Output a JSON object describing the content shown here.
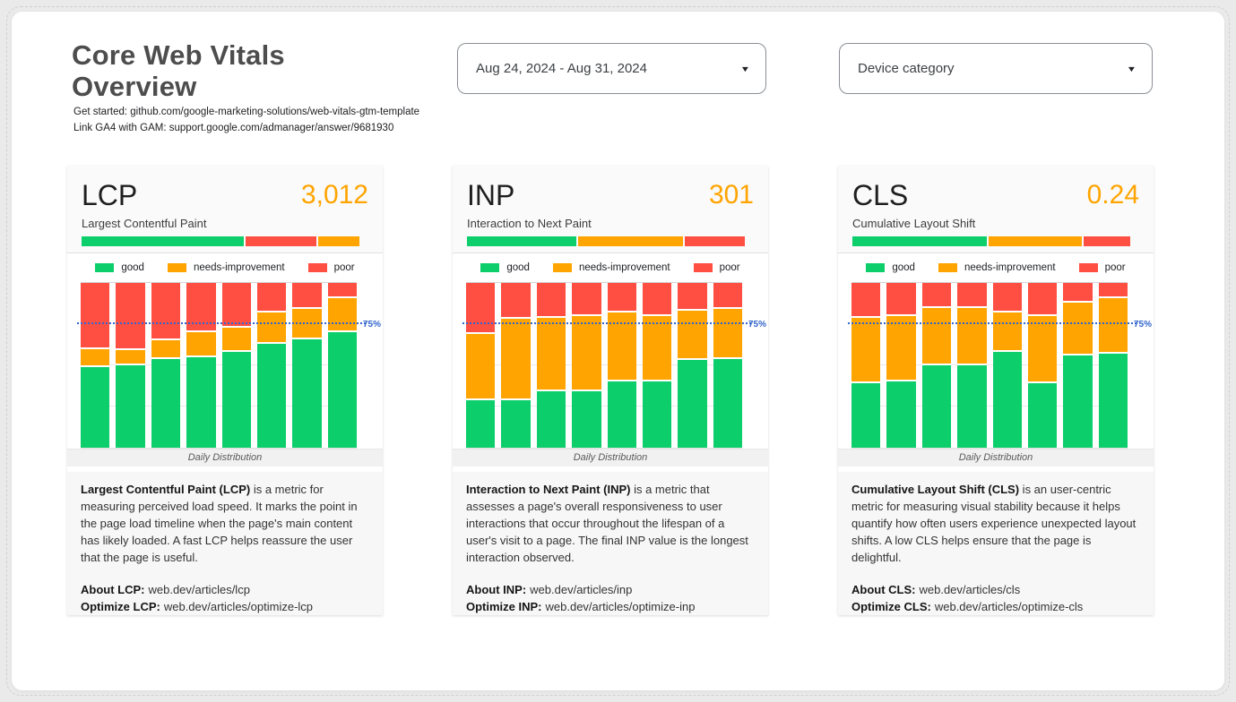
{
  "page": {
    "title": "Core Web Vitals Overview",
    "subtitle_links": [
      "Get started: github.com/google-marketing-solutions/web-vitals-gtm-template",
      "Link GA4 with GAM: support.google.com/admanager/answer/9681930"
    ]
  },
  "controls": {
    "date_range": {
      "value": "Aug 24, 2024 - Aug 31, 2024"
    },
    "device_category": {
      "label": "Device category"
    }
  },
  "colors": {
    "good": "#0CCE6B",
    "needs_improvement": "#FFA400",
    "poor": "#FF4E42",
    "value_accent": "#FFA400",
    "threshold": "#3366CC"
  },
  "legend": {
    "good": "good",
    "needs_improvement": "needs-improvement",
    "poor": "poor"
  },
  "threshold": {
    "label": "75%",
    "value": 75
  },
  "cards": [
    {
      "metric": "LCP",
      "value": "3,012",
      "subtitle": "Largest Contentful Paint",
      "gauge": {
        "segments": [
          {
            "color": "good",
            "percent": 59
          },
          {
            "color": "poor",
            "percent": 26
          },
          {
            "color": "needs_improvement",
            "percent": 15
          }
        ]
      },
      "chart": {
        "caption": "Daily Distribution",
        "bars": [
          [
            49,
            11,
            40
          ],
          [
            50,
            9,
            41
          ],
          [
            54,
            11,
            35
          ],
          [
            55,
            15,
            30
          ],
          [
            58,
            15,
            27
          ],
          [
            63,
            19,
            18
          ],
          [
            66,
            18,
            16
          ],
          [
            70,
            21,
            9
          ]
        ]
      },
      "description": {
        "bold": "Largest Contentful Paint (LCP)",
        "text": " is a metric for measuring perceived load speed. It marks the point in the page load timeline when the page's main content has likely loaded. A fast LCP helps reassure the user that the page is useful."
      },
      "about": {
        "label": "About LCP:",
        "url": "web.dev/articles/lcp"
      },
      "optimize": {
        "label": "Optimize LCP:",
        "url": "web.dev/articles/optimize-lcp"
      }
    },
    {
      "metric": "INP",
      "value": "301",
      "subtitle": "Interaction to Next Paint",
      "gauge": {
        "segments": [
          {
            "color": "good",
            "percent": 40
          },
          {
            "color": "needs_improvement",
            "percent": 38
          },
          {
            "color": "poor",
            "percent": 22
          }
        ]
      },
      "chart": {
        "caption": "Daily Distribution",
        "bars": [
          [
            29,
            40,
            31
          ],
          [
            29,
            49,
            22
          ],
          [
            34,
            45,
            21
          ],
          [
            34,
            46,
            20
          ],
          [
            40,
            42,
            18
          ],
          [
            40,
            40,
            20
          ],
          [
            53,
            30,
            17
          ],
          [
            54,
            30,
            16
          ]
        ]
      },
      "description": {
        "bold": "Interaction to Next Paint (INP)",
        "text": " is a metric that assesses a page's overall responsiveness to user interactions that occur throughout the lifespan of a user's visit to a page. The final INP value is the longest interaction observed."
      },
      "about": {
        "label": "About INP:",
        "url": "web.dev/articles/inp"
      },
      "optimize": {
        "label": "Optimize INP:",
        "url": "web.dev/articles/optimize-inp"
      }
    },
    {
      "metric": "CLS",
      "value": "0.24",
      "subtitle": "Cumulative Layout Shift",
      "gauge": {
        "segments": [
          {
            "color": "good",
            "percent": 49
          },
          {
            "color": "needs_improvement",
            "percent": 34
          },
          {
            "color": "poor",
            "percent": 17
          }
        ]
      },
      "chart": {
        "caption": "Daily Distribution",
        "bars": [
          [
            39,
            40,
            21
          ],
          [
            40,
            40,
            20
          ],
          [
            50,
            35,
            15
          ],
          [
            50,
            35,
            15
          ],
          [
            58,
            24,
            18
          ],
          [
            39,
            41,
            20
          ],
          [
            56,
            32,
            12
          ],
          [
            57,
            34,
            9
          ]
        ]
      },
      "description": {
        "bold": "Cumulative Layout Shift (CLS)",
        "text": " is an user-centric metric for measuring visual stability because it helps quantify how often users experience unexpected layout shifts. A low CLS helps ensure that the page is delightful."
      },
      "about": {
        "label": "About CLS:",
        "url": "web.dev/articles/cls"
      },
      "optimize": {
        "label": "Optimize CLS:",
        "url": "web.dev/articles/optimize-cls"
      }
    }
  ],
  "chart_data": [
    {
      "type": "bar",
      "subtype": "stacked-percent",
      "title": "LCP Daily Distribution",
      "bar_count": 8,
      "series": [
        {
          "name": "good",
          "values": [
            49,
            50,
            54,
            55,
            58,
            63,
            66,
            70
          ]
        },
        {
          "name": "needs-improvement",
          "values": [
            11,
            9,
            11,
            15,
            15,
            19,
            18,
            21
          ]
        },
        {
          "name": "poor",
          "values": [
            40,
            41,
            35,
            30,
            27,
            18,
            16,
            9
          ]
        }
      ],
      "ylim": [
        0,
        100
      ],
      "grid": true,
      "legend_position": "top",
      "threshold_line": {
        "y": 75,
        "label": "75%"
      },
      "caption": "Daily Distribution"
    },
    {
      "type": "bar",
      "subtype": "stacked-percent",
      "title": "INP Daily Distribution",
      "bar_count": 8,
      "series": [
        {
          "name": "good",
          "values": [
            29,
            29,
            34,
            34,
            40,
            40,
            53,
            54
          ]
        },
        {
          "name": "needs-improvement",
          "values": [
            40,
            49,
            45,
            46,
            42,
            40,
            30,
            30
          ]
        },
        {
          "name": "poor",
          "values": [
            31,
            22,
            21,
            20,
            18,
            20,
            17,
            16
          ]
        }
      ],
      "ylim": [
        0,
        100
      ],
      "grid": true,
      "legend_position": "top",
      "threshold_line": {
        "y": 75,
        "label": "75%"
      },
      "caption": "Daily Distribution"
    },
    {
      "type": "bar",
      "subtype": "stacked-percent",
      "title": "CLS Daily Distribution",
      "bar_count": 8,
      "series": [
        {
          "name": "good",
          "values": [
            39,
            40,
            50,
            50,
            58,
            39,
            56,
            57
          ]
        },
        {
          "name": "needs-improvement",
          "values": [
            40,
            40,
            35,
            35,
            24,
            41,
            32,
            34
          ]
        },
        {
          "name": "poor",
          "values": [
            21,
            20,
            15,
            15,
            18,
            20,
            12,
            9
          ]
        }
      ],
      "ylim": [
        0,
        100
      ],
      "grid": true,
      "legend_position": "top",
      "threshold_line": {
        "y": 75,
        "label": "75%"
      },
      "caption": "Daily Distribution"
    }
  ]
}
